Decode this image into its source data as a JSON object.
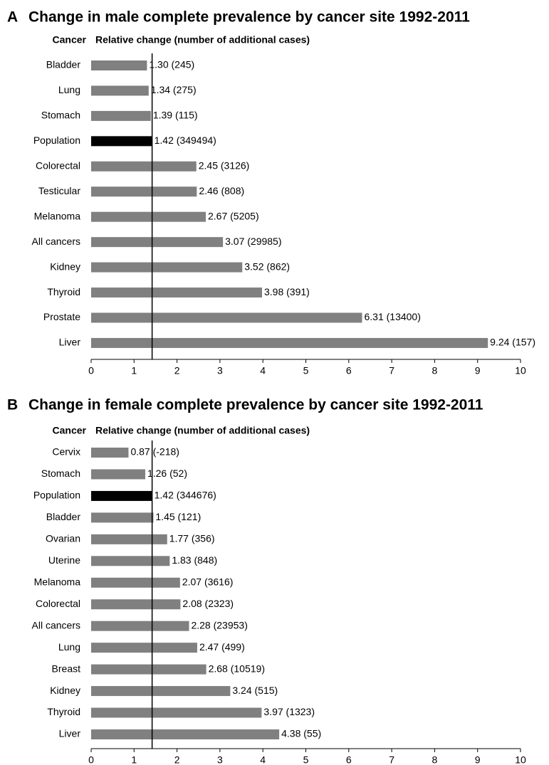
{
  "chart_data": [
    {
      "type": "hbar",
      "panel": "A",
      "title": "Change in male complete prevalence by cancer site 1992-2011",
      "category_header": "Cancer",
      "value_header": "Relative change (number of additional cases)",
      "categories": [
        "Bladder",
        "Lung",
        "Stomach",
        "Population",
        "Colorectal",
        "Testicular",
        "Melanoma",
        "All cancers",
        "Kidney",
        "Thyroid",
        "Prostate",
        "Liver"
      ],
      "values": [
        1.3,
        1.34,
        1.39,
        1.42,
        2.45,
        2.46,
        2.67,
        3.07,
        3.52,
        3.98,
        6.31,
        9.24
      ],
      "value_labels": [
        "1.30 (245)",
        "1.34 (275)",
        "1.39 (115)",
        "1.42 (349494)",
        "2.45 (3126)",
        "2.46 (808)",
        "2.67 (5205)",
        "3.07 (29985)",
        "3.52 (862)",
        "3.98 (391)",
        "6.31 (13400)",
        "9.24 (157)"
      ],
      "colors": [
        "#808080",
        "#808080",
        "#808080",
        "#000000",
        "#808080",
        "#808080",
        "#808080",
        "#808080",
        "#808080",
        "#808080",
        "#808080",
        "#808080"
      ],
      "xlim": [
        0,
        10
      ],
      "xticks": [
        0,
        1,
        2,
        3,
        4,
        5,
        6,
        7,
        8,
        9,
        10
      ]
    },
    {
      "type": "hbar",
      "panel": "B",
      "title": "Change in female complete prevalence by cancer site 1992-2011",
      "category_header": "Cancer",
      "value_header": "Relative change (number of additional cases)",
      "categories": [
        "Cervix",
        "Stomach",
        "Population",
        "Bladder",
        "Ovarian",
        "Uterine",
        "Melanoma",
        "Colorectal",
        "All cancers",
        "Lung",
        "Breast",
        "Kidney",
        "Thyroid",
        "Liver"
      ],
      "values": [
        0.87,
        1.26,
        1.42,
        1.45,
        1.77,
        1.83,
        2.07,
        2.08,
        2.28,
        2.47,
        2.68,
        3.24,
        3.97,
        4.38
      ],
      "value_labels": [
        "0.87 (-218)",
        "1.26 (52)",
        "1.42 (344676)",
        "1.45 (121)",
        "1.77 (356)",
        "1.83 (848)",
        "2.07 (3616)",
        "2.08 (2323)",
        "2.28 (23953)",
        "2.47 (499)",
        "2.68 (10519)",
        "3.24 (515)",
        "3.97 (1323)",
        "4.38 (55)"
      ],
      "colors": [
        "#808080",
        "#808080",
        "#000000",
        "#808080",
        "#808080",
        "#808080",
        "#808080",
        "#808080",
        "#808080",
        "#808080",
        "#808080",
        "#808080",
        "#808080",
        "#808080"
      ],
      "xlim": [
        0,
        10
      ],
      "xticks": [
        0,
        1,
        2,
        3,
        4,
        5,
        6,
        7,
        8,
        9,
        10
      ]
    }
  ]
}
